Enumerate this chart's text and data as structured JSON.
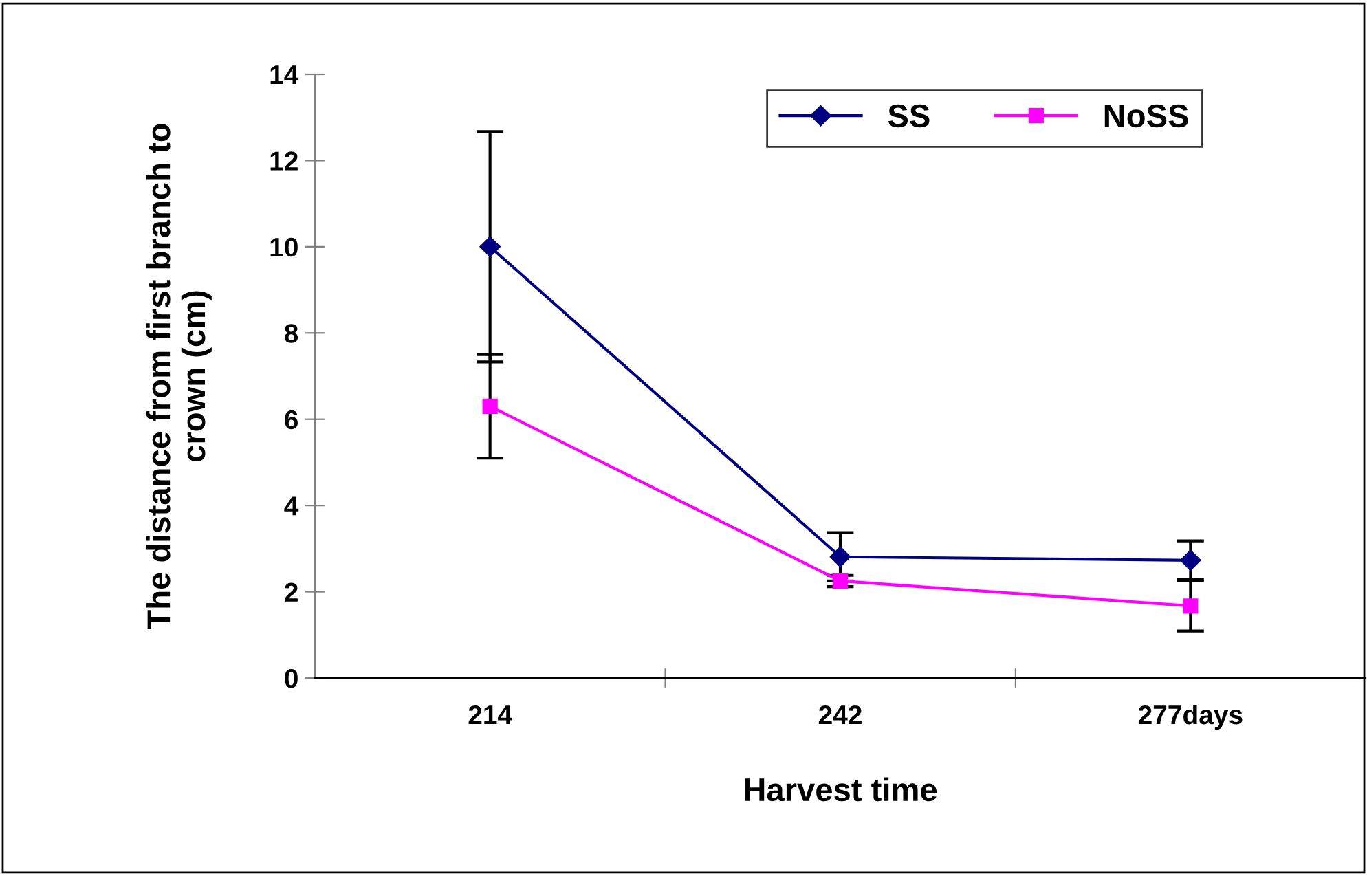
{
  "chart_data": {
    "type": "line",
    "xlabel": "Harvest time",
    "ylabel": "The distance from first branch to\ncrown (cm)",
    "categories": [
      "214",
      "242",
      "277days"
    ],
    "series": [
      {
        "name": "SS",
        "color": "#000080",
        "marker": "diamond",
        "values": [
          10.0,
          2.81,
          2.73
        ],
        "errors": [
          2.67,
          0.56,
          0.45
        ]
      },
      {
        "name": "NoSS",
        "color": "#ff00ff",
        "marker": "square",
        "values": [
          6.3,
          2.25,
          1.67
        ],
        "errors": [
          1.2,
          0.13,
          0.58
        ]
      }
    ],
    "ylim": [
      0,
      14
    ],
    "yticks": [
      0,
      2,
      4,
      6,
      8,
      10,
      12,
      14
    ],
    "grid": false,
    "legend": "top right"
  }
}
